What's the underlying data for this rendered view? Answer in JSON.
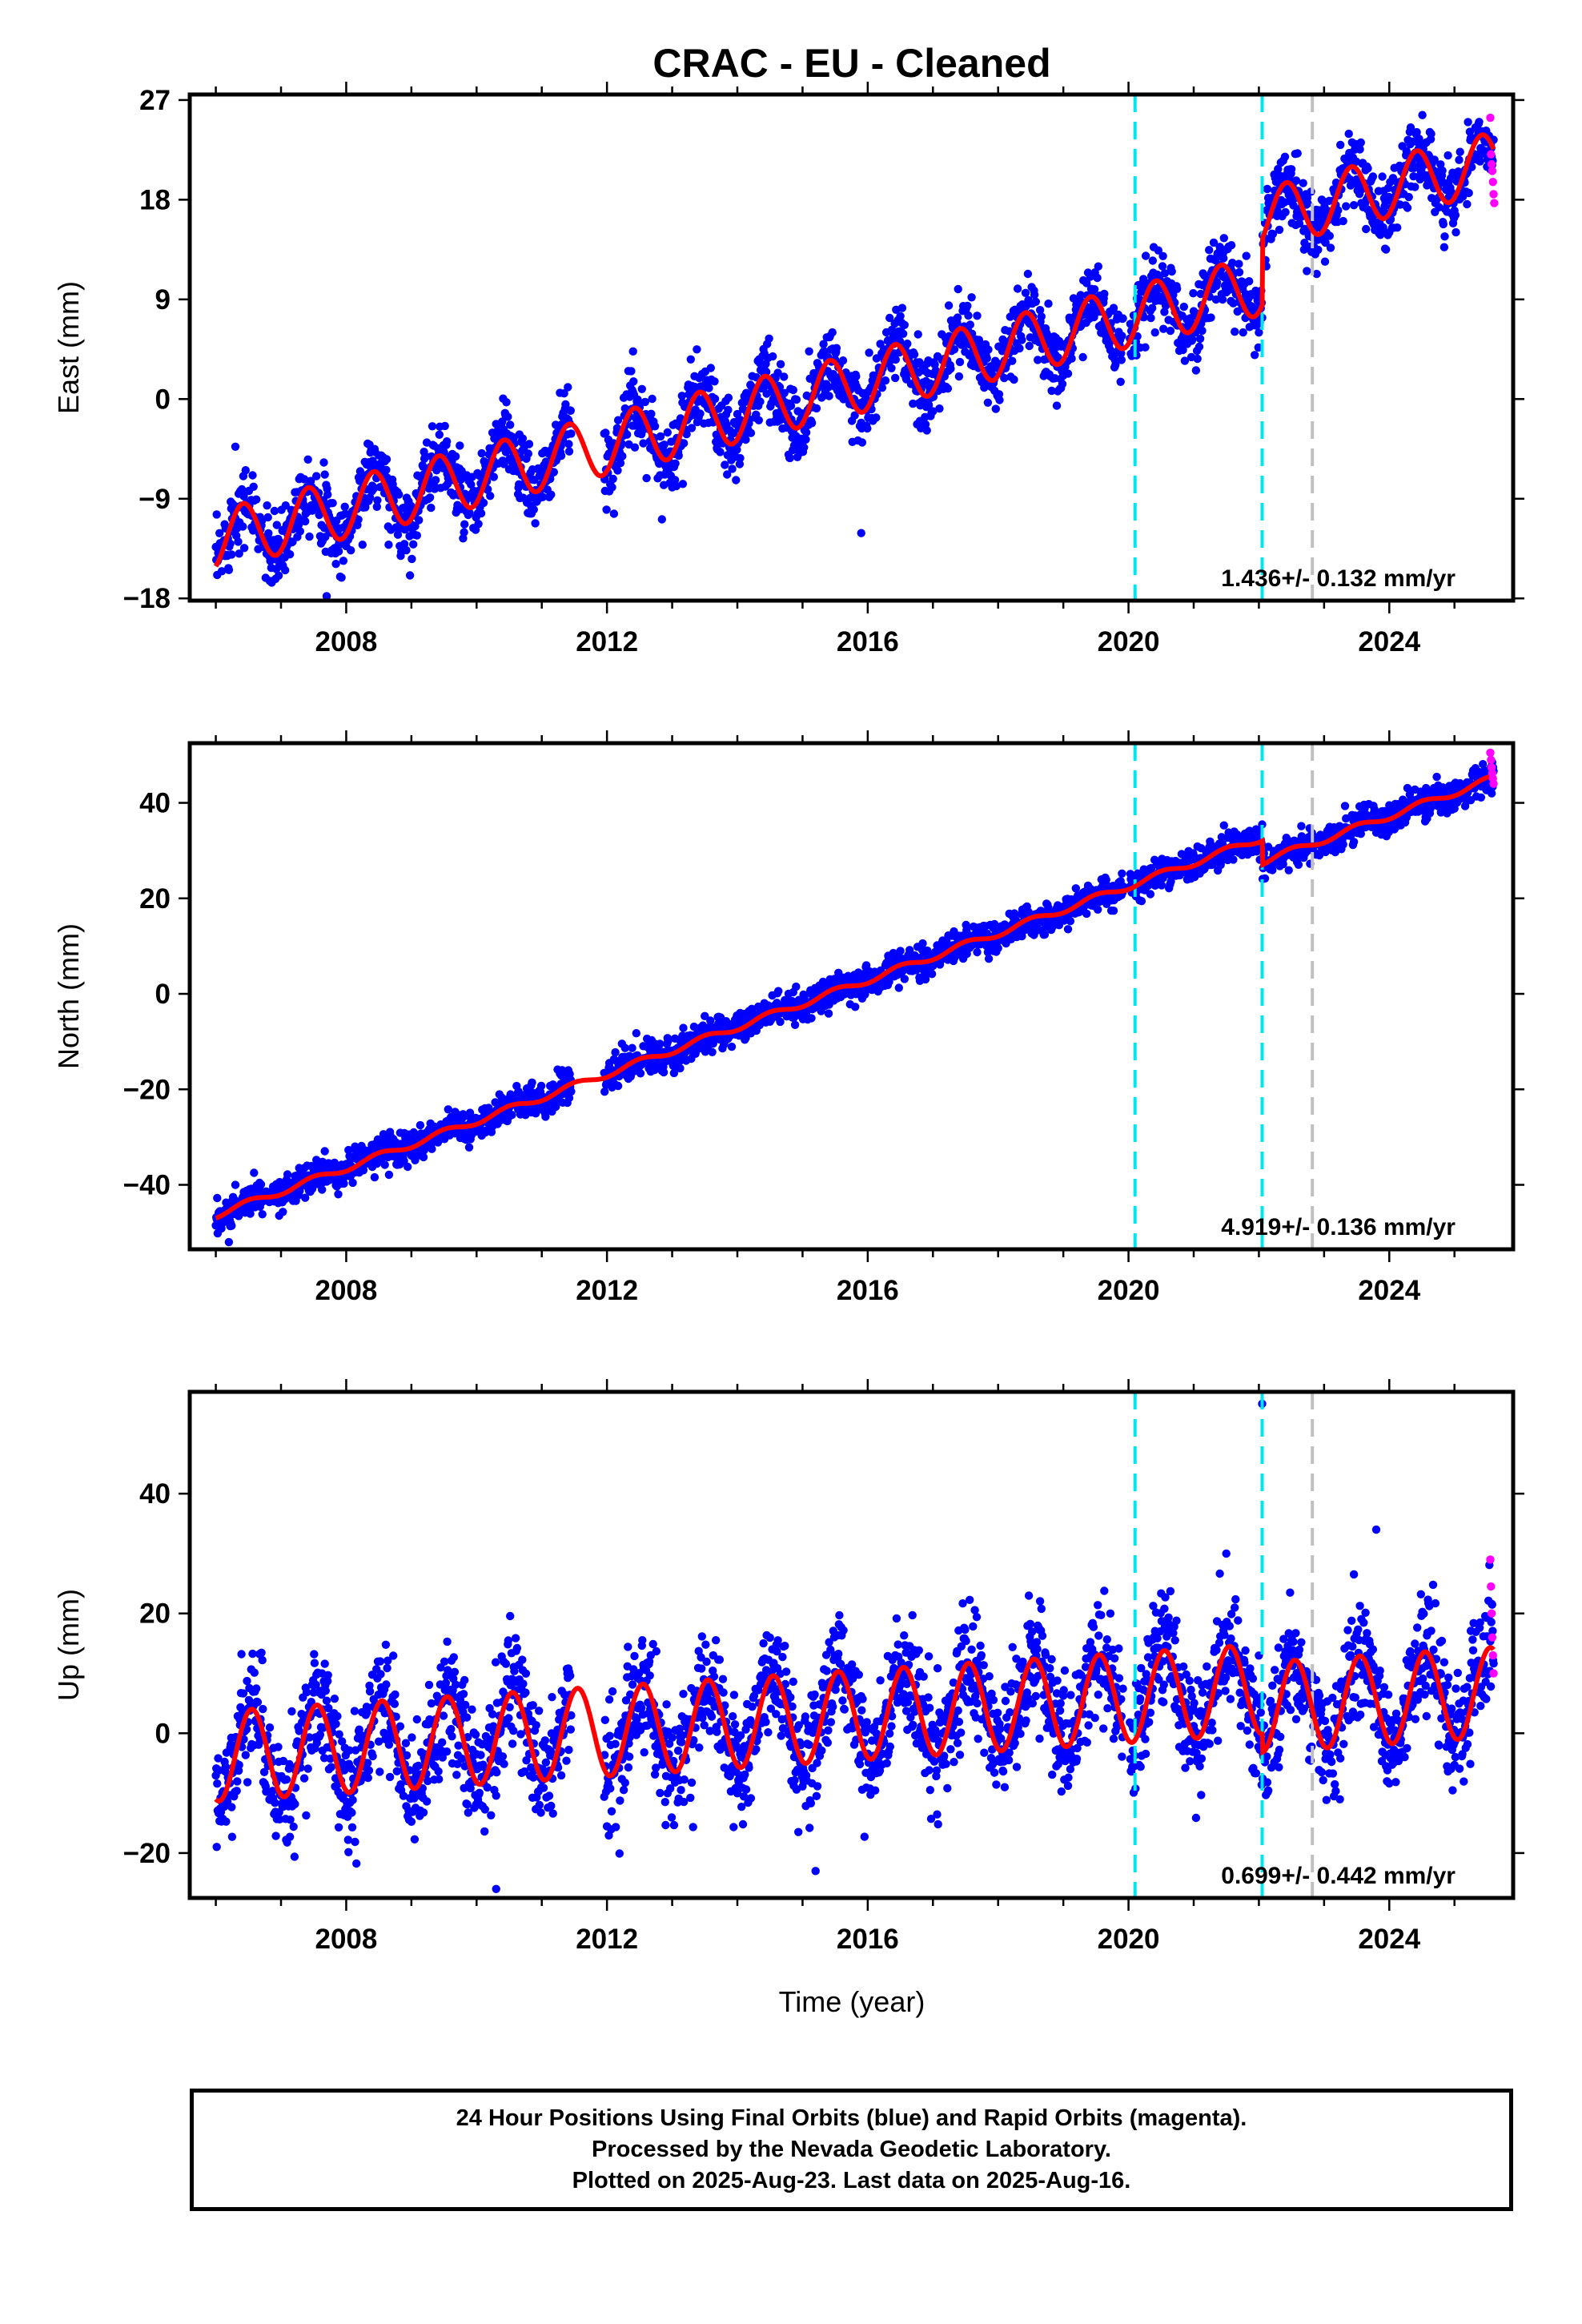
{
  "title": "CRAC  - EU - Cleaned",
  "xlabel": "Time (year)",
  "footer": {
    "line1": "24 Hour Positions Using Final Orbits (blue) and Rapid Orbits (magenta).",
    "line2": "Processed by the Nevada Geodetic Laboratory.",
    "line3": "Plotted on 2025-Aug-23. Last data on 2025-Aug-16."
  },
  "colors": {
    "final": "#0000ff",
    "rapid": "#ff00ff",
    "model": "#ff0000",
    "event_cyan": "#00e5ee",
    "event_gray": "#c0c0c0"
  },
  "chart_data": [
    {
      "type": "scatter",
      "title": "CRAC  - EU - Cleaned",
      "ylabel": "East (mm)",
      "xlabel": "",
      "xlim": [
        2005.6,
        2025.9
      ],
      "ylim": [
        -18.2,
        27.5
      ],
      "xticks": [
        2008,
        2012,
        2016,
        2020,
        2024
      ],
      "yticks": [
        27,
        18,
        9,
        0,
        -9,
        -18
      ],
      "rate_label": "1.436+/- 0.132 mm/yr",
      "cyan_lines": [
        2020.1,
        2022.05
      ],
      "gray_lines": [
        2022.82
      ],
      "model": {
        "start_year": 2006.0,
        "end_year": 2025.6,
        "start_value": -15.1,
        "trend_mm_per_yr": 1.436,
        "annual_amplitude": 2.7,
        "annual_peak_fraction": 0.42,
        "steps": [
          {
            "year": 2022.05,
            "offset": 6.0
          }
        ]
      },
      "series": [
        {
          "name": "Final Orbits (blue)",
          "scatter_mm": 1.6,
          "outliers": [
            [
              2006.3,
              -4.3
            ],
            [
              2007.7,
              -17.8
            ],
            [
              2012.4,
              4.3
            ],
            [
              2015.9,
              -12.1
            ]
          ]
        },
        {
          "name": "Rapid Orbits (magenta)",
          "points": [
            [
              2025.55,
              25.4
            ],
            [
              2025.56,
              22.1
            ],
            [
              2025.57,
              21.2
            ],
            [
              2025.58,
              20.6
            ],
            [
              2025.59,
              19.6
            ],
            [
              2025.6,
              18.5
            ],
            [
              2025.61,
              17.7
            ]
          ]
        }
      ]
    },
    {
      "type": "scatter",
      "title": "",
      "ylabel": "North (mm)",
      "xlabel": "",
      "xlim": [
        2005.6,
        2025.9
      ],
      "ylim": [
        -53.5,
        52.5
      ],
      "xticks": [
        2008,
        2012,
        2016,
        2020,
        2024
      ],
      "yticks": [
        40,
        20,
        0,
        -20,
        -40
      ],
      "rate_label": "4.919+/- 0.136 mm/yr",
      "cyan_lines": [
        2020.1,
        2022.05
      ],
      "gray_lines": [
        2022.82
      ],
      "model": {
        "start_year": 2006.0,
        "end_year": 2025.6,
        "start_value": -47.0,
        "trend_mm_per_yr": 4.919,
        "annual_amplitude": 0.7,
        "annual_peak_fraction": 0.5,
        "steps": [
          {
            "year": 2022.05,
            "offset": -5.0
          }
        ]
      },
      "series": [
        {
          "name": "Final Orbits (blue)",
          "scatter_mm": 1.6,
          "outliers": [
            [
              2006.2,
              -52.0
            ],
            [
              2019.1,
              17.5
            ]
          ]
        },
        {
          "name": "Rapid Orbits (magenta)",
          "points": [
            [
              2025.55,
              50.5
            ],
            [
              2025.56,
              49.0
            ],
            [
              2025.57,
              47.4
            ],
            [
              2025.58,
              46.2
            ],
            [
              2025.59,
              45.1
            ],
            [
              2025.6,
              44.0
            ]
          ]
        }
      ]
    },
    {
      "type": "scatter",
      "title": "",
      "ylabel": "Up (mm)",
      "xlabel": "Time (year)",
      "xlim": [
        2005.6,
        2025.9
      ],
      "ylim": [
        -27.5,
        57
      ],
      "xticks": [
        2008,
        2012,
        2016,
        2020,
        2024
      ],
      "yticks": [
        40,
        20,
        0,
        -20
      ],
      "rate_label": "0.699+/- 0.442 mm/yr",
      "cyan_lines": [
        2020.1,
        2022.05
      ],
      "gray_lines": [
        2022.82
      ],
      "model": {
        "start_year": 2006.0,
        "end_year": 2025.6,
        "start_value": -11.0,
        "trend_mm_per_yr": 0.699,
        "annual_amplitude": 7.5,
        "annual_peak_fraction": 0.55,
        "steps": [
          {
            "year": 2022.05,
            "offset": -3.0
          }
        ]
      },
      "series": [
        {
          "name": "Final Orbits (blue)",
          "scatter_mm": 4.8,
          "outliers": [
            [
              2022.05,
              55.0
            ],
            [
              2021.5,
              30.0
            ],
            [
              2023.8,
              34.0
            ],
            [
              2010.3,
              -26.0
            ],
            [
              2015.2,
              -23.0
            ]
          ]
        },
        {
          "name": "Rapid Orbits (magenta)",
          "points": [
            [
              2025.55,
              29.0
            ],
            [
              2025.56,
              24.5
            ],
            [
              2025.57,
              20.0
            ],
            [
              2025.58,
              16.0
            ],
            [
              2025.59,
              13.0
            ],
            [
              2025.6,
              10.0
            ]
          ]
        }
      ]
    }
  ]
}
